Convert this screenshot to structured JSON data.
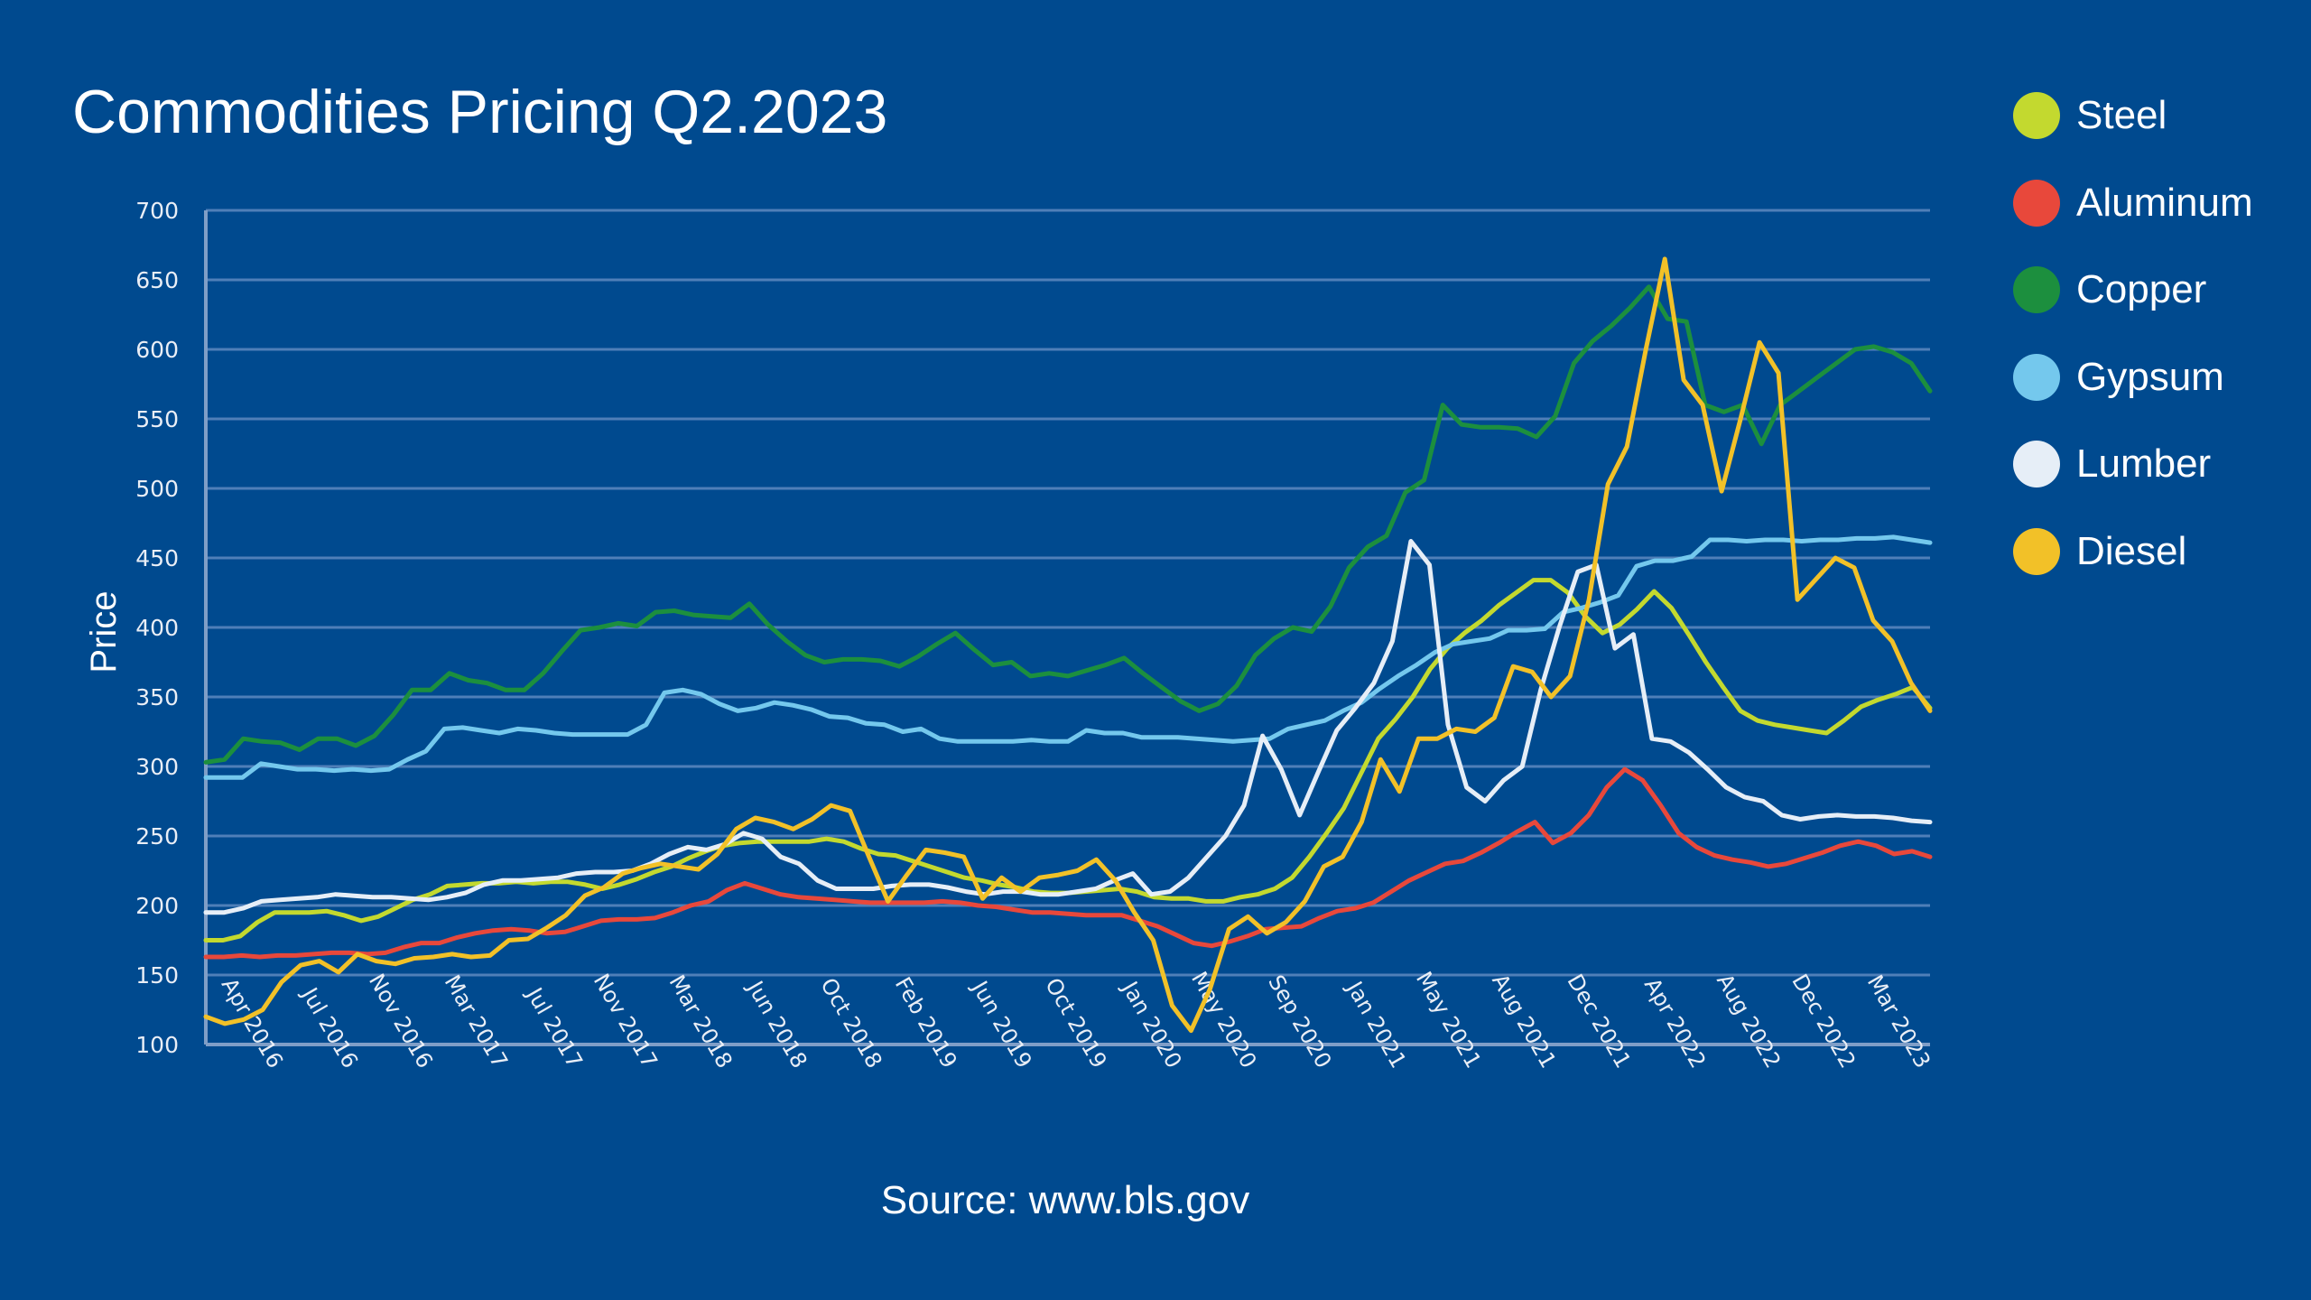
{
  "chart_data": {
    "type": "line",
    "title": "Commodities Pricing Q2.2023",
    "source": "Source: www.bls.gov",
    "xlabel": "",
    "ylabel": "Price",
    "ylim": [
      100,
      700
    ],
    "yticks": [
      100,
      150,
      200,
      250,
      300,
      350,
      400,
      450,
      500,
      550,
      600,
      650,
      700
    ],
    "grid": true,
    "legend_position": "right",
    "x_tick_labels": [
      "Apr 2016",
      "Jul 2016",
      "Nov 2016",
      "Mar 2017",
      "Jul 2017",
      "Nov 2017",
      "Mar 2018",
      "Jun 2018",
      "Oct 2018",
      "Feb 2019",
      "Jun 2019",
      "Oct 2019",
      "Jan 2020",
      "May 2020",
      "Sep 2020",
      "Jan 2021",
      "May 2021",
      "Aug 2021",
      "Dec 2021",
      "Apr 2022",
      "Aug 2022",
      "Dec 2022",
      "Mar 2023"
    ],
    "series": [
      {
        "name": "Steel",
        "color": "#c3d92f",
        "values": [
          175,
          175,
          178,
          188,
          195,
          195,
          195,
          196,
          193,
          189,
          192,
          198,
          204,
          208,
          214,
          215,
          216,
          216,
          217,
          216,
          217,
          217,
          215,
          212,
          215,
          219,
          224,
          228,
          234,
          239,
          243,
          245,
          246,
          246,
          246,
          246,
          248,
          246,
          241,
          237,
          236,
          232,
          228,
          224,
          220,
          218,
          215,
          213,
          210,
          209,
          209,
          210,
          211,
          212,
          210,
          206,
          205,
          205,
          203,
          203,
          206,
          208,
          212,
          220,
          235,
          252,
          270,
          295,
          320,
          334,
          350,
          370,
          385,
          396,
          405,
          416,
          425,
          434,
          434,
          425,
          408,
          396,
          402,
          413,
          426,
          414,
          395,
          375,
          357,
          340,
          333,
          330,
          328,
          326,
          324,
          333,
          343,
          348,
          352,
          357,
          342
        ]
      },
      {
        "name": "Aluminum",
        "color": "#e8483b",
        "values": [
          163,
          163,
          164,
          163,
          164,
          164,
          165,
          166,
          166,
          165,
          166,
          170,
          173,
          173,
          177,
          180,
          182,
          183,
          182,
          180,
          181,
          185,
          189,
          190,
          190,
          191,
          195,
          200,
          203,
          211,
          216,
          212,
          208,
          206,
          205,
          204,
          203,
          202,
          202,
          202,
          202,
          203,
          202,
          200,
          199,
          197,
          195,
          195,
          194,
          193,
          193,
          193,
          189,
          185,
          179,
          173,
          171,
          174,
          178,
          183,
          184,
          185,
          191,
          196,
          198,
          202,
          210,
          218,
          224,
          230,
          232,
          238,
          245,
          253,
          260,
          245,
          252,
          265,
          285,
          298,
          290,
          272,
          252,
          242,
          236,
          233,
          231,
          228,
          230,
          234,
          238,
          243,
          246,
          243,
          237,
          239,
          235
        ]
      },
      {
        "name": "Copper",
        "color": "#1c8f3e",
        "values": [
          303,
          305,
          320,
          318,
          317,
          312,
          320,
          320,
          315,
          322,
          337,
          355,
          355,
          367,
          362,
          360,
          355,
          355,
          367,
          383,
          398,
          400,
          403,
          401,
          411,
          412,
          409,
          408,
          407,
          417,
          402,
          390,
          380,
          375,
          377,
          377,
          376,
          372,
          379,
          388,
          396,
          384,
          373,
          375,
          365,
          367,
          365,
          369,
          373,
          378,
          367,
          357,
          347,
          340,
          345,
          358,
          380,
          392,
          400,
          397,
          415,
          443,
          458,
          466,
          497,
          506,
          560,
          546,
          544,
          544,
          543,
          537,
          552,
          590,
          606,
          617,
          630,
          645,
          622,
          620,
          560,
          555,
          560,
          532,
          560,
          570,
          580,
          590,
          600,
          602,
          598,
          590,
          570
        ]
      },
      {
        "name": "Gypsum",
        "color": "#74c8ed",
        "values": [
          292,
          292,
          292,
          302,
          300,
          298,
          298,
          297,
          298,
          297,
          298,
          305,
          311,
          327,
          328,
          326,
          324,
          327,
          326,
          324,
          323,
          323,
          323,
          323,
          330,
          353,
          355,
          352,
          345,
          340,
          342,
          346,
          344,
          341,
          336,
          335,
          331,
          330,
          325,
          327,
          320,
          318,
          318,
          318,
          318,
          319,
          318,
          318,
          326,
          324,
          324,
          321,
          321,
          321,
          320,
          319,
          318,
          319,
          320,
          327,
          330,
          333,
          340,
          346,
          356,
          365,
          373,
          382,
          388,
          390,
          392,
          398,
          398,
          399,
          411,
          414,
          418,
          423,
          444,
          448,
          448,
          451,
          463,
          463,
          462,
          463,
          463,
          462,
          463,
          463,
          464,
          464,
          465,
          463,
          461
        ]
      },
      {
        "name": "Lumber",
        "color": "#e6eef7",
        "values": [
          195,
          195,
          198,
          203,
          204,
          205,
          206,
          208,
          207,
          206,
          206,
          205,
          204,
          206,
          209,
          215,
          218,
          218,
          219,
          220,
          223,
          224,
          224,
          225,
          230,
          237,
          242,
          240,
          244,
          252,
          248,
          235,
          230,
          218,
          212,
          212,
          212,
          214,
          215,
          215,
          213,
          210,
          208,
          210,
          210,
          208,
          208,
          210,
          212,
          218,
          223,
          208,
          210,
          220,
          235,
          250,
          272,
          322,
          298,
          265,
          296,
          326,
          342,
          360,
          390,
          462,
          445,
          330,
          285,
          275,
          290,
          300,
          355,
          400,
          440,
          445,
          385,
          395,
          320,
          318,
          310,
          298,
          285,
          278,
          275,
          265,
          262,
          264,
          265,
          264,
          264,
          263,
          261,
          260
        ]
      },
      {
        "name": "Diesel",
        "color": "#f2c128",
        "values": [
          120,
          115,
          118,
          125,
          145,
          157,
          160,
          152,
          165,
          160,
          158,
          162,
          163,
          165,
          163,
          164,
          175,
          176,
          184,
          193,
          207,
          213,
          223,
          227,
          230,
          228,
          226,
          237,
          255,
          263,
          260,
          255,
          262,
          272,
          268,
          235,
          203,
          222,
          240,
          238,
          235,
          205,
          220,
          210,
          220,
          222,
          225,
          233,
          218,
          195,
          175,
          128,
          110,
          140,
          183,
          192,
          180,
          188,
          203,
          228,
          235,
          260,
          305,
          282,
          320,
          320,
          327,
          325,
          335,
          372,
          368,
          350,
          365,
          420,
          503,
          530,
          600,
          665,
          578,
          560,
          498,
          550,
          605,
          583,
          420,
          435,
          450,
          443,
          405,
          390,
          360,
          340
        ]
      }
    ]
  }
}
